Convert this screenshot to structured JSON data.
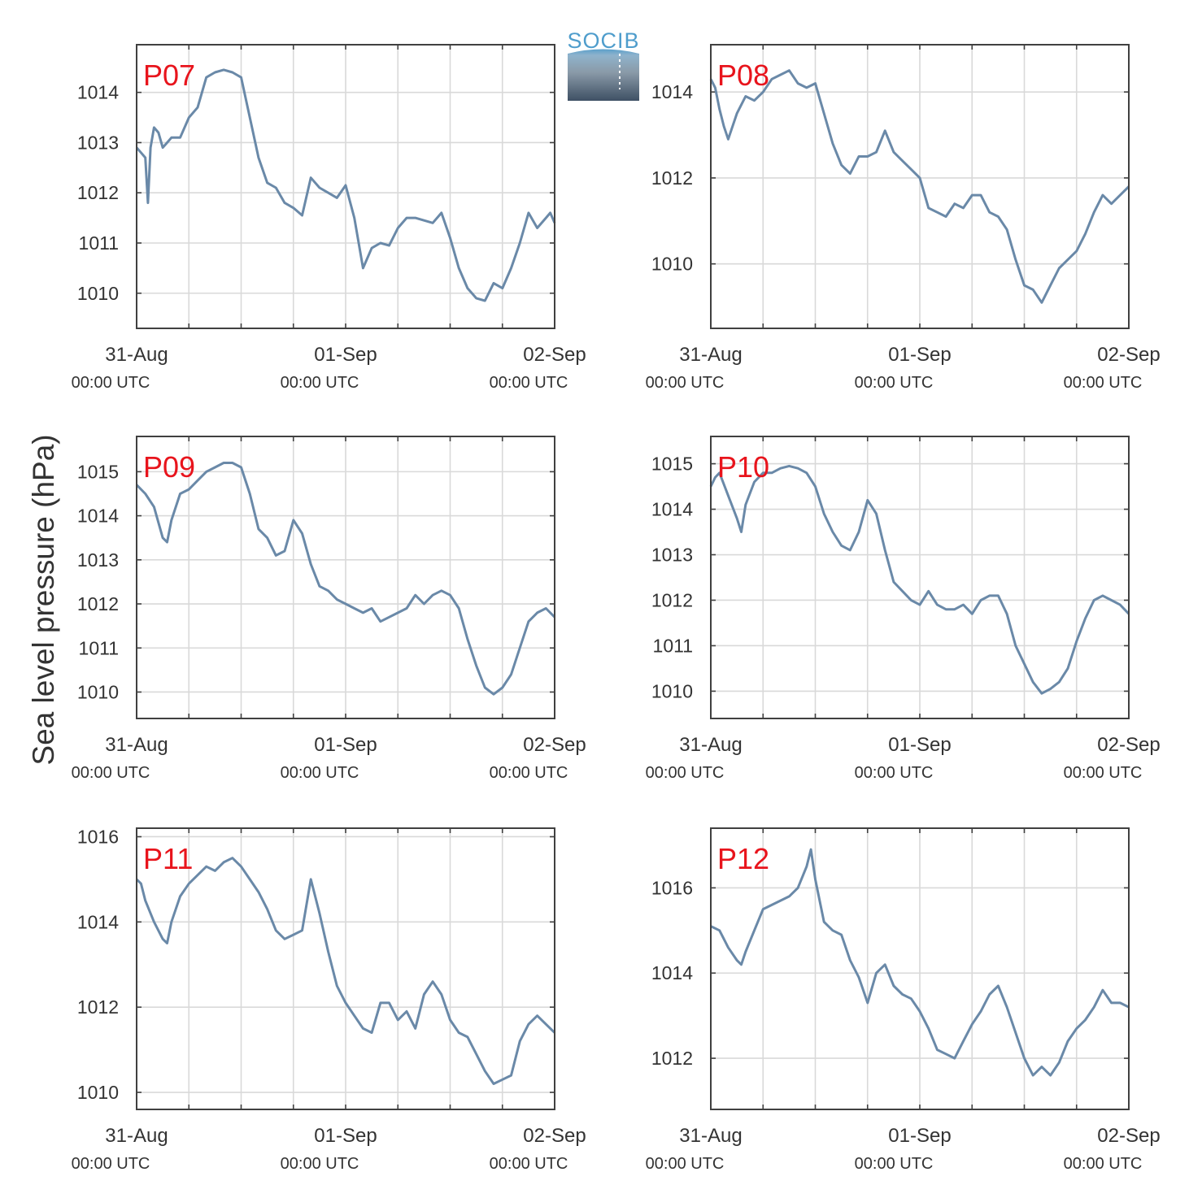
{
  "figure": {
    "ylabel": "Sea level pressure (hPa)",
    "logo_text": "SOCIB",
    "colors": {
      "line": "#6a89a8",
      "label": "#e8141c",
      "grid": "#d9d9d9",
      "frame": "#404040",
      "text": "#333333"
    }
  },
  "chart_data": [
    {
      "type": "line",
      "label": "P07",
      "x_ticks": [
        {
          "date": "31-Aug",
          "time": "00:00 UTC"
        },
        {
          "date": "01-Sep",
          "time": "00:00 UTC"
        },
        {
          "date": "02-Sep",
          "time": "00:00 UTC"
        }
      ],
      "xlim_hours": [
        0,
        48
      ],
      "ylim": [
        1009.3,
        1014.95
      ],
      "yticks": [
        1010,
        1011,
        1012,
        1013,
        1014
      ],
      "series": [
        {
          "x_hours": [
            0,
            0.5,
            1,
            1.3,
            1.6,
            2,
            2.5,
            3,
            3.5,
            4,
            5,
            6,
            7,
            8,
            9,
            10,
            11,
            12,
            13,
            14,
            15,
            16,
            17,
            18,
            19,
            20,
            21,
            22,
            23,
            24,
            25,
            26,
            27,
            28,
            29,
            30,
            31,
            32,
            33,
            34,
            35,
            36,
            37,
            38,
            39,
            40,
            41,
            42,
            43,
            44,
            45,
            46,
            47,
            47.5,
            48
          ],
          "values": [
            1012.9,
            1012.8,
            1012.7,
            1011.8,
            1012.9,
            1013.3,
            1013.2,
            1012.9,
            1013,
            1013.1,
            1013.1,
            1013.5,
            1013.7,
            1014.3,
            1014.4,
            1014.45,
            1014.4,
            1014.3,
            1013.5,
            1012.7,
            1012.2,
            1012.1,
            1011.8,
            1011.7,
            1011.55,
            1012.3,
            1012.1,
            1012,
            1011.9,
            1012.15,
            1011.5,
            1010.5,
            1010.9,
            1011,
            1010.95,
            1011.3,
            1011.5,
            1011.5,
            1011.45,
            1011.4,
            1011.6,
            1011.1,
            1010.5,
            1010.1,
            1009.9,
            1009.85,
            1010.2,
            1010.1,
            1010.5,
            1011,
            1011.6,
            1011.3,
            1011.5,
            1011.6,
            1011.4
          ]
        }
      ]
    },
    {
      "type": "line",
      "label": "P08",
      "x_ticks": [
        {
          "date": "31-Aug",
          "time": "00:00 UTC"
        },
        {
          "date": "01-Sep",
          "time": "00:00 UTC"
        },
        {
          "date": "02-Sep",
          "time": "00:00 UTC"
        }
      ],
      "xlim_hours": [
        0,
        48
      ],
      "ylim": [
        1008.5,
        1015.1
      ],
      "yticks": [
        1010,
        1012,
        1014
      ],
      "series": [
        {
          "x_hours": [
            0,
            0.5,
            1,
            1.5,
            2,
            3,
            4,
            5,
            6,
            7,
            8,
            9,
            10,
            11,
            12,
            13,
            14,
            15,
            16,
            17,
            18,
            19,
            20,
            21,
            22,
            23,
            24,
            25,
            26,
            27,
            28,
            29,
            30,
            31,
            32,
            33,
            34,
            35,
            36,
            37,
            38,
            39,
            40,
            41,
            42,
            43,
            44,
            45,
            46,
            47,
            48
          ],
          "values": [
            1014.3,
            1014.1,
            1013.6,
            1013.2,
            1012.9,
            1013.5,
            1013.9,
            1013.8,
            1014,
            1014.3,
            1014.4,
            1014.5,
            1014.2,
            1014.1,
            1014.2,
            1013.5,
            1012.8,
            1012.3,
            1012.1,
            1012.5,
            1012.5,
            1012.6,
            1013.1,
            1012.6,
            1012.4,
            1012.2,
            1012,
            1011.3,
            1011.2,
            1011.1,
            1011.4,
            1011.3,
            1011.6,
            1011.6,
            1011.2,
            1011.1,
            1010.8,
            1010.1,
            1009.5,
            1009.4,
            1009.1,
            1009.5,
            1009.9,
            1010.1,
            1010.3,
            1010.7,
            1011.2,
            1011.6,
            1011.4,
            1011.6,
            1011.8
          ]
        }
      ]
    },
    {
      "type": "line",
      "label": "P09",
      "x_ticks": [
        {
          "date": "31-Aug",
          "time": "00:00 UTC"
        },
        {
          "date": "01-Sep",
          "time": "00:00 UTC"
        },
        {
          "date": "02-Sep",
          "time": "00:00 UTC"
        }
      ],
      "xlim_hours": [
        0,
        48
      ],
      "ylim": [
        1009.4,
        1015.8
      ],
      "yticks": [
        1010,
        1011,
        1012,
        1013,
        1014,
        1015
      ],
      "series": [
        {
          "x_hours": [
            0,
            1,
            2,
            3,
            3.5,
            4,
            5,
            6,
            7,
            8,
            9,
            10,
            11,
            12,
            13,
            14,
            15,
            16,
            17,
            18,
            19,
            20,
            21,
            22,
            23,
            24,
            25,
            26,
            27,
            28,
            29,
            30,
            31,
            32,
            33,
            34,
            35,
            36,
            37,
            38,
            39,
            40,
            41,
            42,
            43,
            44,
            45,
            46,
            47,
            48
          ],
          "values": [
            1014.7,
            1014.5,
            1014.2,
            1013.5,
            1013.4,
            1013.9,
            1014.5,
            1014.6,
            1014.8,
            1015,
            1015.1,
            1015.2,
            1015.2,
            1015.1,
            1014.5,
            1013.7,
            1013.5,
            1013.1,
            1013.2,
            1013.9,
            1013.6,
            1012.9,
            1012.4,
            1012.3,
            1012.1,
            1012,
            1011.9,
            1011.8,
            1011.9,
            1011.6,
            1011.7,
            1011.8,
            1011.9,
            1012.2,
            1012,
            1012.2,
            1012.3,
            1012.2,
            1011.9,
            1011.2,
            1010.6,
            1010.1,
            1009.95,
            1010.1,
            1010.4,
            1011,
            1011.6,
            1011.8,
            1011.9,
            1011.7
          ]
        }
      ]
    },
    {
      "type": "line",
      "label": "P10",
      "x_ticks": [
        {
          "date": "31-Aug",
          "time": "00:00 UTC"
        },
        {
          "date": "01-Sep",
          "time": "00:00 UTC"
        },
        {
          "date": "02-Sep",
          "time": "00:00 UTC"
        }
      ],
      "xlim_hours": [
        0,
        48
      ],
      "ylim": [
        1009.4,
        1015.6
      ],
      "yticks": [
        1010,
        1011,
        1012,
        1013,
        1014,
        1015
      ],
      "series": [
        {
          "x_hours": [
            0,
            0.5,
            1,
            2,
            3,
            3.5,
            4,
            5,
            6,
            7,
            8,
            9,
            10,
            11,
            12,
            13,
            14,
            15,
            16,
            17,
            18,
            19,
            20,
            21,
            22,
            23,
            24,
            25,
            26,
            27,
            28,
            29,
            30,
            31,
            32,
            33,
            34,
            35,
            36,
            37,
            38,
            39,
            40,
            41,
            42,
            43,
            44,
            45,
            46,
            47,
            48
          ],
          "values": [
            1014.5,
            1014.7,
            1014.8,
            1014.3,
            1013.8,
            1013.5,
            1014.1,
            1014.6,
            1014.8,
            1014.8,
            1014.9,
            1014.95,
            1014.9,
            1014.8,
            1014.5,
            1013.9,
            1013.5,
            1013.2,
            1013.1,
            1013.5,
            1014.2,
            1013.9,
            1013.1,
            1012.4,
            1012.2,
            1012,
            1011.9,
            1012.2,
            1011.9,
            1011.8,
            1011.8,
            1011.9,
            1011.7,
            1012,
            1012.1,
            1012.1,
            1011.7,
            1011,
            1010.6,
            1010.2,
            1009.95,
            1010.05,
            1010.2,
            1010.5,
            1011.1,
            1011.6,
            1012,
            1012.1,
            1012,
            1011.9,
            1011.7
          ]
        }
      ]
    },
    {
      "type": "line",
      "label": "P11",
      "x_ticks": [
        {
          "date": "31-Aug",
          "time": "00:00 UTC"
        },
        {
          "date": "01-Sep",
          "time": "00:00 UTC"
        },
        {
          "date": "02-Sep",
          "time": "00:00 UTC"
        }
      ],
      "xlim_hours": [
        0,
        48
      ],
      "ylim": [
        1009.6,
        1016.2
      ],
      "yticks": [
        1010,
        1012,
        1014,
        1016
      ],
      "series": [
        {
          "x_hours": [
            0,
            0.5,
            1,
            2,
            3,
            3.5,
            4,
            5,
            6,
            7,
            8,
            9,
            10,
            11,
            12,
            13,
            14,
            15,
            16,
            17,
            18,
            19,
            20,
            21,
            22,
            23,
            24,
            25,
            26,
            27,
            28,
            29,
            30,
            31,
            32,
            33,
            34,
            35,
            36,
            37,
            38,
            39,
            40,
            41,
            42,
            43,
            44,
            45,
            46,
            47,
            48
          ],
          "values": [
            1015,
            1014.9,
            1014.5,
            1014,
            1013.6,
            1013.5,
            1014,
            1014.6,
            1014.9,
            1015.1,
            1015.3,
            1015.2,
            1015.4,
            1015.5,
            1015.3,
            1015,
            1014.7,
            1014.3,
            1013.8,
            1013.6,
            1013.7,
            1013.8,
            1015,
            1014.2,
            1013.3,
            1012.5,
            1012.1,
            1011.8,
            1011.5,
            1011.4,
            1012.1,
            1012.1,
            1011.7,
            1011.9,
            1011.5,
            1012.3,
            1012.6,
            1012.3,
            1011.7,
            1011.4,
            1011.3,
            1010.9,
            1010.5,
            1010.2,
            1010.3,
            1010.4,
            1011.2,
            1011.6,
            1011.8,
            1011.6,
            1011.4
          ]
        }
      ]
    },
    {
      "type": "line",
      "label": "P12",
      "x_ticks": [
        {
          "date": "31-Aug",
          "time": "00:00 UTC"
        },
        {
          "date": "01-Sep",
          "time": "00:00 UTC"
        },
        {
          "date": "02-Sep",
          "time": "00:00 UTC"
        }
      ],
      "xlim_hours": [
        0,
        48
      ],
      "ylim": [
        1010.8,
        1017.4
      ],
      "yticks": [
        1012,
        1014,
        1016
      ],
      "series": [
        {
          "x_hours": [
            0,
            1,
            2,
            3,
            3.5,
            4,
            5,
            6,
            7,
            8,
            9,
            10,
            11,
            11.5,
            12,
            13,
            14,
            15,
            16,
            17,
            18,
            19,
            20,
            21,
            22,
            23,
            24,
            25,
            26,
            27,
            28,
            29,
            30,
            31,
            32,
            33,
            34,
            35,
            36,
            37,
            38,
            39,
            40,
            41,
            42,
            43,
            44,
            45,
            46,
            47,
            48
          ],
          "values": [
            1015.1,
            1015,
            1014.6,
            1014.3,
            1014.2,
            1014.5,
            1015,
            1015.5,
            1015.6,
            1015.7,
            1015.8,
            1016,
            1016.5,
            1016.9,
            1016.2,
            1015.2,
            1015,
            1014.9,
            1014.3,
            1013.9,
            1013.3,
            1014,
            1014.2,
            1013.7,
            1013.5,
            1013.4,
            1013.1,
            1012.7,
            1012.2,
            1012.1,
            1012,
            1012.4,
            1012.8,
            1013.1,
            1013.5,
            1013.7,
            1013.2,
            1012.6,
            1012,
            1011.6,
            1011.8,
            1011.6,
            1011.9,
            1012.4,
            1012.7,
            1012.9,
            1013.2,
            1013.6,
            1013.3,
            1013.3,
            1013.2
          ]
        }
      ]
    }
  ]
}
